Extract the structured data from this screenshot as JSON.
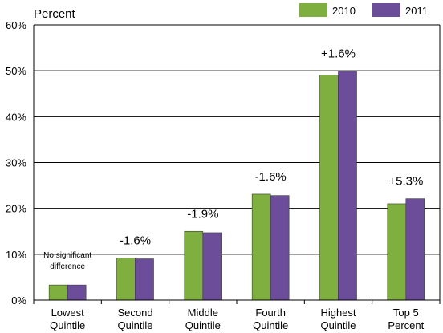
{
  "chart_data": {
    "type": "bar",
    "ylabel": "Percent",
    "ylim": [
      0,
      60
    ],
    "yticks": [
      "0%",
      "10%",
      "20%",
      "30%",
      "40%",
      "50%",
      "60%"
    ],
    "grid": true,
    "legend_position": "top-right",
    "categories": [
      [
        "Lowest",
        "Quintile"
      ],
      [
        "Second",
        "Quintile"
      ],
      [
        "Middle",
        "Quintile"
      ],
      [
        "Fourth",
        "Quintile"
      ],
      [
        "Highest",
        "Quintile"
      ],
      [
        "Top 5",
        "Percent"
      ]
    ],
    "series": [
      {
        "name": "2010",
        "color": "#7faf3e",
        "values": [
          3.3,
          9.2,
          15.0,
          23.1,
          49.1,
          21.0
        ]
      },
      {
        "name": "2011",
        "color": "#6b4d9a",
        "values": [
          3.3,
          9.0,
          14.7,
          22.8,
          49.9,
          22.1
        ]
      }
    ],
    "annotations": [
      [
        "No significant",
        "difference"
      ],
      "-1.6%",
      "-1.9%",
      "-1.6%",
      "+1.6%",
      "+5.3%"
    ]
  }
}
